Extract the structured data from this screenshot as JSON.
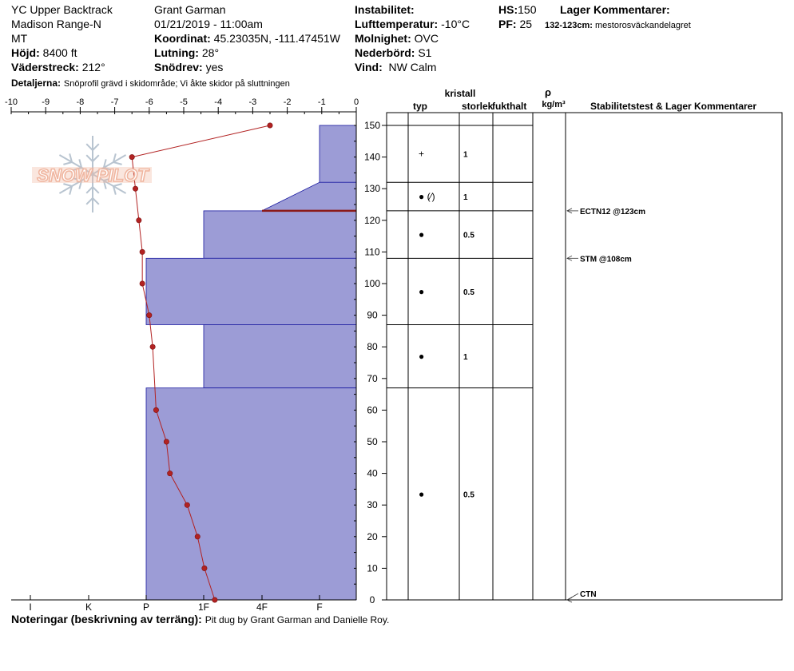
{
  "header": {
    "location_1": "YC Upper Backtrack",
    "location_2": "Madison Range-N",
    "location_3": "MT",
    "elevation_label": "Höjd:",
    "elevation_value": "8400 ft",
    "aspect_label": "Väderstreck:",
    "aspect_value": "212°",
    "observer": "Grant Garman",
    "datetime": "01/21/2019 - 11:00am",
    "coord_label": "Koordinat:",
    "coord_value": "45.23035N, -111.47451W",
    "slope_label": "Lutning:",
    "slope_value": "28°",
    "wind_loading_label": "Snödrev:",
    "wind_loading_value": "yes",
    "instability_label": "Instabilitet:",
    "air_temp_label": "Lufttemperatur:",
    "air_temp_value": "-10°C",
    "sky_label": "Molnighet:",
    "sky_value": "OVC",
    "precip_label": "Nederbörd:",
    "precip_value": "S1",
    "wind_label": "Vind:",
    "wind_value": "NW Calm",
    "hs_label": "HS:",
    "hs_value": "150",
    "pf_label": "PF:",
    "pf_value": "25",
    "layer_comments_label": "Lager Kommentarer:",
    "layer_comment_range": "132-123cm:",
    "layer_comment_text": "mestorosväckandelagret",
    "details_label": "Detaljerna:",
    "details_value": "Snöprofil grävd i skidområde; Vi åkte skidor på sluttningen",
    "notes_label": "Noteringar (beskrivning av terräng):",
    "notes_value": "Pit dug by Grant Garman and Danielle Roy."
  },
  "logo_text": "SNOW PILOT",
  "table_headers": {
    "crystal": "kristall",
    "type": "typ",
    "size": "storlek",
    "moisture": "fukthalt",
    "density_symbol": "ρ",
    "density_unit": "kg/m³",
    "stability": "Stabilitetstest & Lager Kommentarer"
  },
  "colors": {
    "hardness_fill": "#9c9cd6",
    "hardness_stroke": "#1a1aa0",
    "temp_line": "#b22222",
    "weak_layer": "#8b1a1a",
    "logo_snowflake": "#b8c4d0",
    "logo_text": "#f0b6a0"
  },
  "chart_data": {
    "type": "snow_profile",
    "temperature_axis": {
      "min": -10,
      "max": 0,
      "ticks": [
        "-10",
        "-9",
        "-8",
        "-7",
        "-6",
        "-5",
        "-4",
        "-3",
        "-2",
        "-1",
        "0"
      ]
    },
    "height_axis": {
      "min": 0,
      "max": 150,
      "ticks": [
        "0",
        "10",
        "20",
        "30",
        "40",
        "50",
        "60",
        "70",
        "80",
        "90",
        "100",
        "110",
        "120",
        "130",
        "140",
        "150"
      ]
    },
    "hardness_axis": {
      "ticks": [
        "I",
        "K",
        "P",
        "1F",
        "4F",
        "F"
      ]
    },
    "temperature_profile": [
      {
        "height": 150,
        "temp": -2.5
      },
      {
        "height": 140,
        "temp": -6.5
      },
      {
        "height": 130,
        "temp": -6.4
      },
      {
        "height": 120,
        "temp": -6.3
      },
      {
        "height": 110,
        "temp": -6.2
      },
      {
        "height": 100,
        "temp": -6.2
      },
      {
        "height": 90,
        "temp": -6.0
      },
      {
        "height": 80,
        "temp": -5.9
      },
      {
        "height": 60,
        "temp": -5.8
      },
      {
        "height": 50,
        "temp": -5.5
      },
      {
        "height": 40,
        "temp": -5.4
      },
      {
        "height": 30,
        "temp": -4.9
      },
      {
        "height": 20,
        "temp": -4.6
      },
      {
        "height": 10,
        "temp": -4.4
      },
      {
        "height": 0,
        "temp": -4.1
      }
    ],
    "hardness_layers": [
      {
        "top": 150,
        "bottom": 132,
        "hardness": "F"
      },
      {
        "top": 132,
        "bottom": 123,
        "hardness_top": "F",
        "hardness_bottom": "4F-"
      },
      {
        "top": 123,
        "bottom": 108,
        "hardness": "1F"
      },
      {
        "top": 108,
        "bottom": 87,
        "hardness": "P"
      },
      {
        "top": 87,
        "bottom": 67,
        "hardness": "1F"
      },
      {
        "top": 67,
        "bottom": 0,
        "hardness": "P"
      }
    ],
    "layers": [
      {
        "top": 150,
        "bottom": 132,
        "type_symbol": "+",
        "size": "1"
      },
      {
        "top": 132,
        "bottom": 123,
        "type_symbol": "●  (⁄)",
        "size": "1"
      },
      {
        "top": 123,
        "bottom": 108,
        "type_symbol": "●",
        "size": "0.5"
      },
      {
        "top": 108,
        "bottom": 87,
        "type_symbol": "●",
        "size": "0.5"
      },
      {
        "top": 87,
        "bottom": 67,
        "type_symbol": "●",
        "size": "1"
      },
      {
        "top": 67,
        "bottom": 0,
        "type_symbol": "●",
        "size": "0.5"
      }
    ],
    "weak_layer_height": 123,
    "stability_tests": [
      {
        "height": 123,
        "label": "ECTN12 @123cm"
      },
      {
        "height": 108,
        "label": "STM @108cm"
      },
      {
        "height": 0,
        "label": "CTN"
      }
    ]
  }
}
